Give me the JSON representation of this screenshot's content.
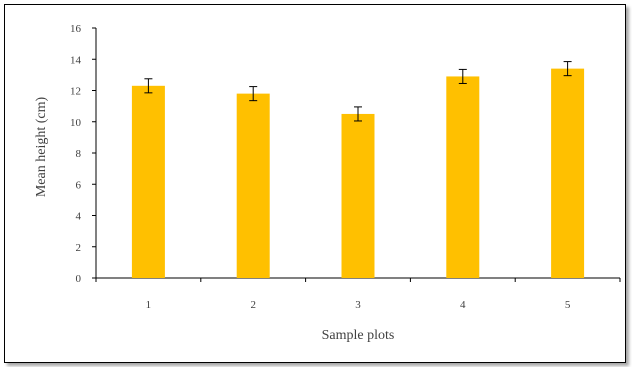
{
  "chart_data": {
    "type": "bar",
    "categories": [
      "1",
      "2",
      "3",
      "4",
      "5"
    ],
    "values": [
      12.3,
      11.8,
      10.5,
      12.9,
      13.4
    ],
    "errors": [
      0.45,
      0.45,
      0.45,
      0.45,
      0.45
    ],
    "title": "",
    "xlabel": "Sample plots",
    "ylabel": "Mean height (cm)",
    "ylim": [
      0,
      16
    ],
    "yticks": [
      "0",
      "2",
      "4",
      "6",
      "8",
      "10",
      "12",
      "14",
      "16"
    ],
    "grid": false,
    "legend": "none",
    "bar_color": "#FFC000",
    "error_bar_color": "#000000",
    "axis_color": "#000000"
  }
}
